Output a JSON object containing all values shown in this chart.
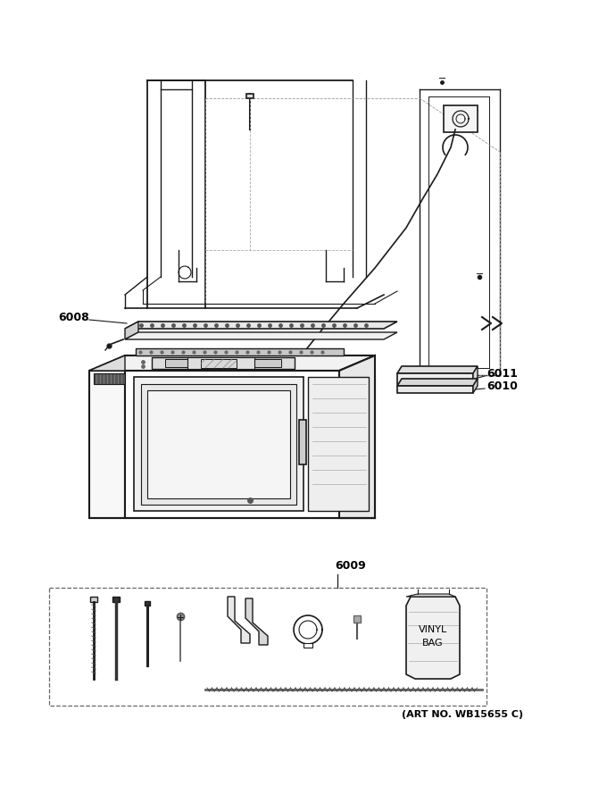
{
  "art_no": "(ART NO. WB15655 C)",
  "bg_color": "#ffffff",
  "line_color": "#1a1a1a",
  "gray": "#888888"
}
